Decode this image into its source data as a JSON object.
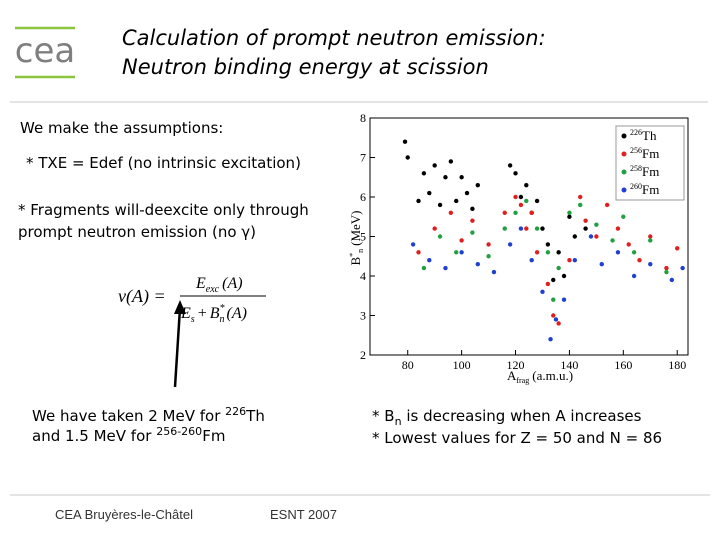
{
  "header": {
    "logo": "cea",
    "title_lines": [
      "Calculation of prompt neutron emission:",
      "Neutron binding energy at scission"
    ]
  },
  "body": {
    "assumptions_heading": "We make the assumptions:",
    "bullet_txe": "* TXE = Edef (no intrinsic excitation)",
    "bullet_fragments": [
      "* Fragments will-deexcite only through",
      "prompt neutron emission (no γ)"
    ],
    "formula": {
      "lhs": "ν(A) =",
      "num_symbol": "E",
      "num_sub": "exc",
      "num_arg": "(A)",
      "den_symbol": "E",
      "den_sub": "s",
      "den_plus": "+",
      "den_b": "B",
      "den_sup": "*",
      "den_sub2": "n",
      "den_arg": "(A)"
    },
    "taken": {
      "line1_text": "We have taken 2 MeV for ",
      "line1_mass": "226",
      "line1_element": "Th",
      "line2_text": "and 1.5 MeV for ",
      "line2_mass": "256-260",
      "line2_element": "Fm"
    },
    "conclusions": {
      "line1_prefix": "* B",
      "line1_sub": "n",
      "line1_text": " is decreasing when A increases",
      "line2": "* Lowest values for Z = 50 and N = 86"
    }
  },
  "footer": {
    "place": "CEA Bruyères-le-Châtel",
    "event": "ESNT 2007"
  },
  "chart_data": {
    "type": "scatter",
    "ylabel": {
      "symbol": "B",
      "sup": "*",
      "sub": "n",
      "unit": "(MeV)"
    },
    "xlabel": {
      "symbol": "A",
      "sub": "frag",
      "unit": "(a.m.u.)"
    },
    "xlim": [
      66,
      184
    ],
    "ylim": [
      2,
      8
    ],
    "xticks": [
      80,
      100,
      120,
      140,
      160,
      180
    ],
    "yticks": [
      2,
      3,
      4,
      5,
      6,
      7,
      8
    ],
    "legend": "upper right",
    "series": [
      {
        "name": {
          "mass": "226",
          "element": "Th"
        },
        "color": "#000000",
        "x": [
          79,
          80,
          84,
          86,
          88,
          90,
          92,
          94,
          96,
          98,
          100,
          102,
          104,
          106,
          118,
          120,
          122,
          124,
          126,
          128,
          130,
          132,
          134,
          136,
          138,
          140,
          142,
          146
        ],
        "values": [
          7.4,
          7.0,
          5.9,
          6.6,
          6.1,
          6.8,
          5.8,
          6.5,
          6.9,
          5.9,
          6.5,
          6.1,
          5.7,
          6.3,
          6.8,
          6.6,
          6.0,
          6.3,
          5.6,
          5.9,
          5.2,
          4.8,
          3.9,
          4.6,
          4.0,
          5.5,
          5.0,
          5.2
        ]
      },
      {
        "name": {
          "mass": "256",
          "element": "Fm"
        },
        "color": "#e02020",
        "x": [
          84,
          90,
          96,
          100,
          104,
          110,
          116,
          120,
          122,
          124,
          126,
          128,
          132,
          134,
          136,
          140,
          144,
          146,
          150,
          154,
          158,
          162,
          166,
          170,
          176,
          180
        ],
        "values": [
          4.6,
          5.2,
          5.6,
          4.9,
          5.4,
          4.8,
          5.6,
          6.0,
          5.8,
          5.2,
          5.6,
          4.6,
          3.8,
          3.0,
          2.8,
          4.4,
          6.0,
          5.4,
          5.0,
          5.8,
          5.2,
          4.8,
          4.4,
          5.0,
          4.2,
          4.7
        ]
      },
      {
        "name": {
          "mass": "258",
          "element": "Fm"
        },
        "color": "#20a040",
        "x": [
          86,
          92,
          98,
          104,
          110,
          116,
          120,
          124,
          128,
          132,
          134,
          136,
          140,
          144,
          150,
          156,
          160,
          164,
          170,
          176
        ],
        "values": [
          4.2,
          5.0,
          4.6,
          5.1,
          4.5,
          5.2,
          5.6,
          5.9,
          5.2,
          4.6,
          3.4,
          4.2,
          5.6,
          5.8,
          5.3,
          4.9,
          5.5,
          4.6,
          4.9,
          4.1
        ]
      },
      {
        "name": {
          "mass": "260",
          "element": "Fm"
        },
        "color": "#2040d0",
        "x": [
          82,
          88,
          94,
          100,
          106,
          112,
          118,
          122,
          126,
          130,
          133,
          135,
          138,
          142,
          148,
          152,
          158,
          164,
          170,
          178,
          182
        ],
        "values": [
          4.8,
          4.4,
          4.2,
          4.6,
          4.3,
          4.1,
          4.8,
          5.2,
          4.4,
          3.6,
          2.4,
          2.9,
          3.4,
          4.4,
          5.0,
          4.3,
          4.6,
          4.0,
          4.3,
          3.9,
          4.2
        ]
      }
    ]
  }
}
